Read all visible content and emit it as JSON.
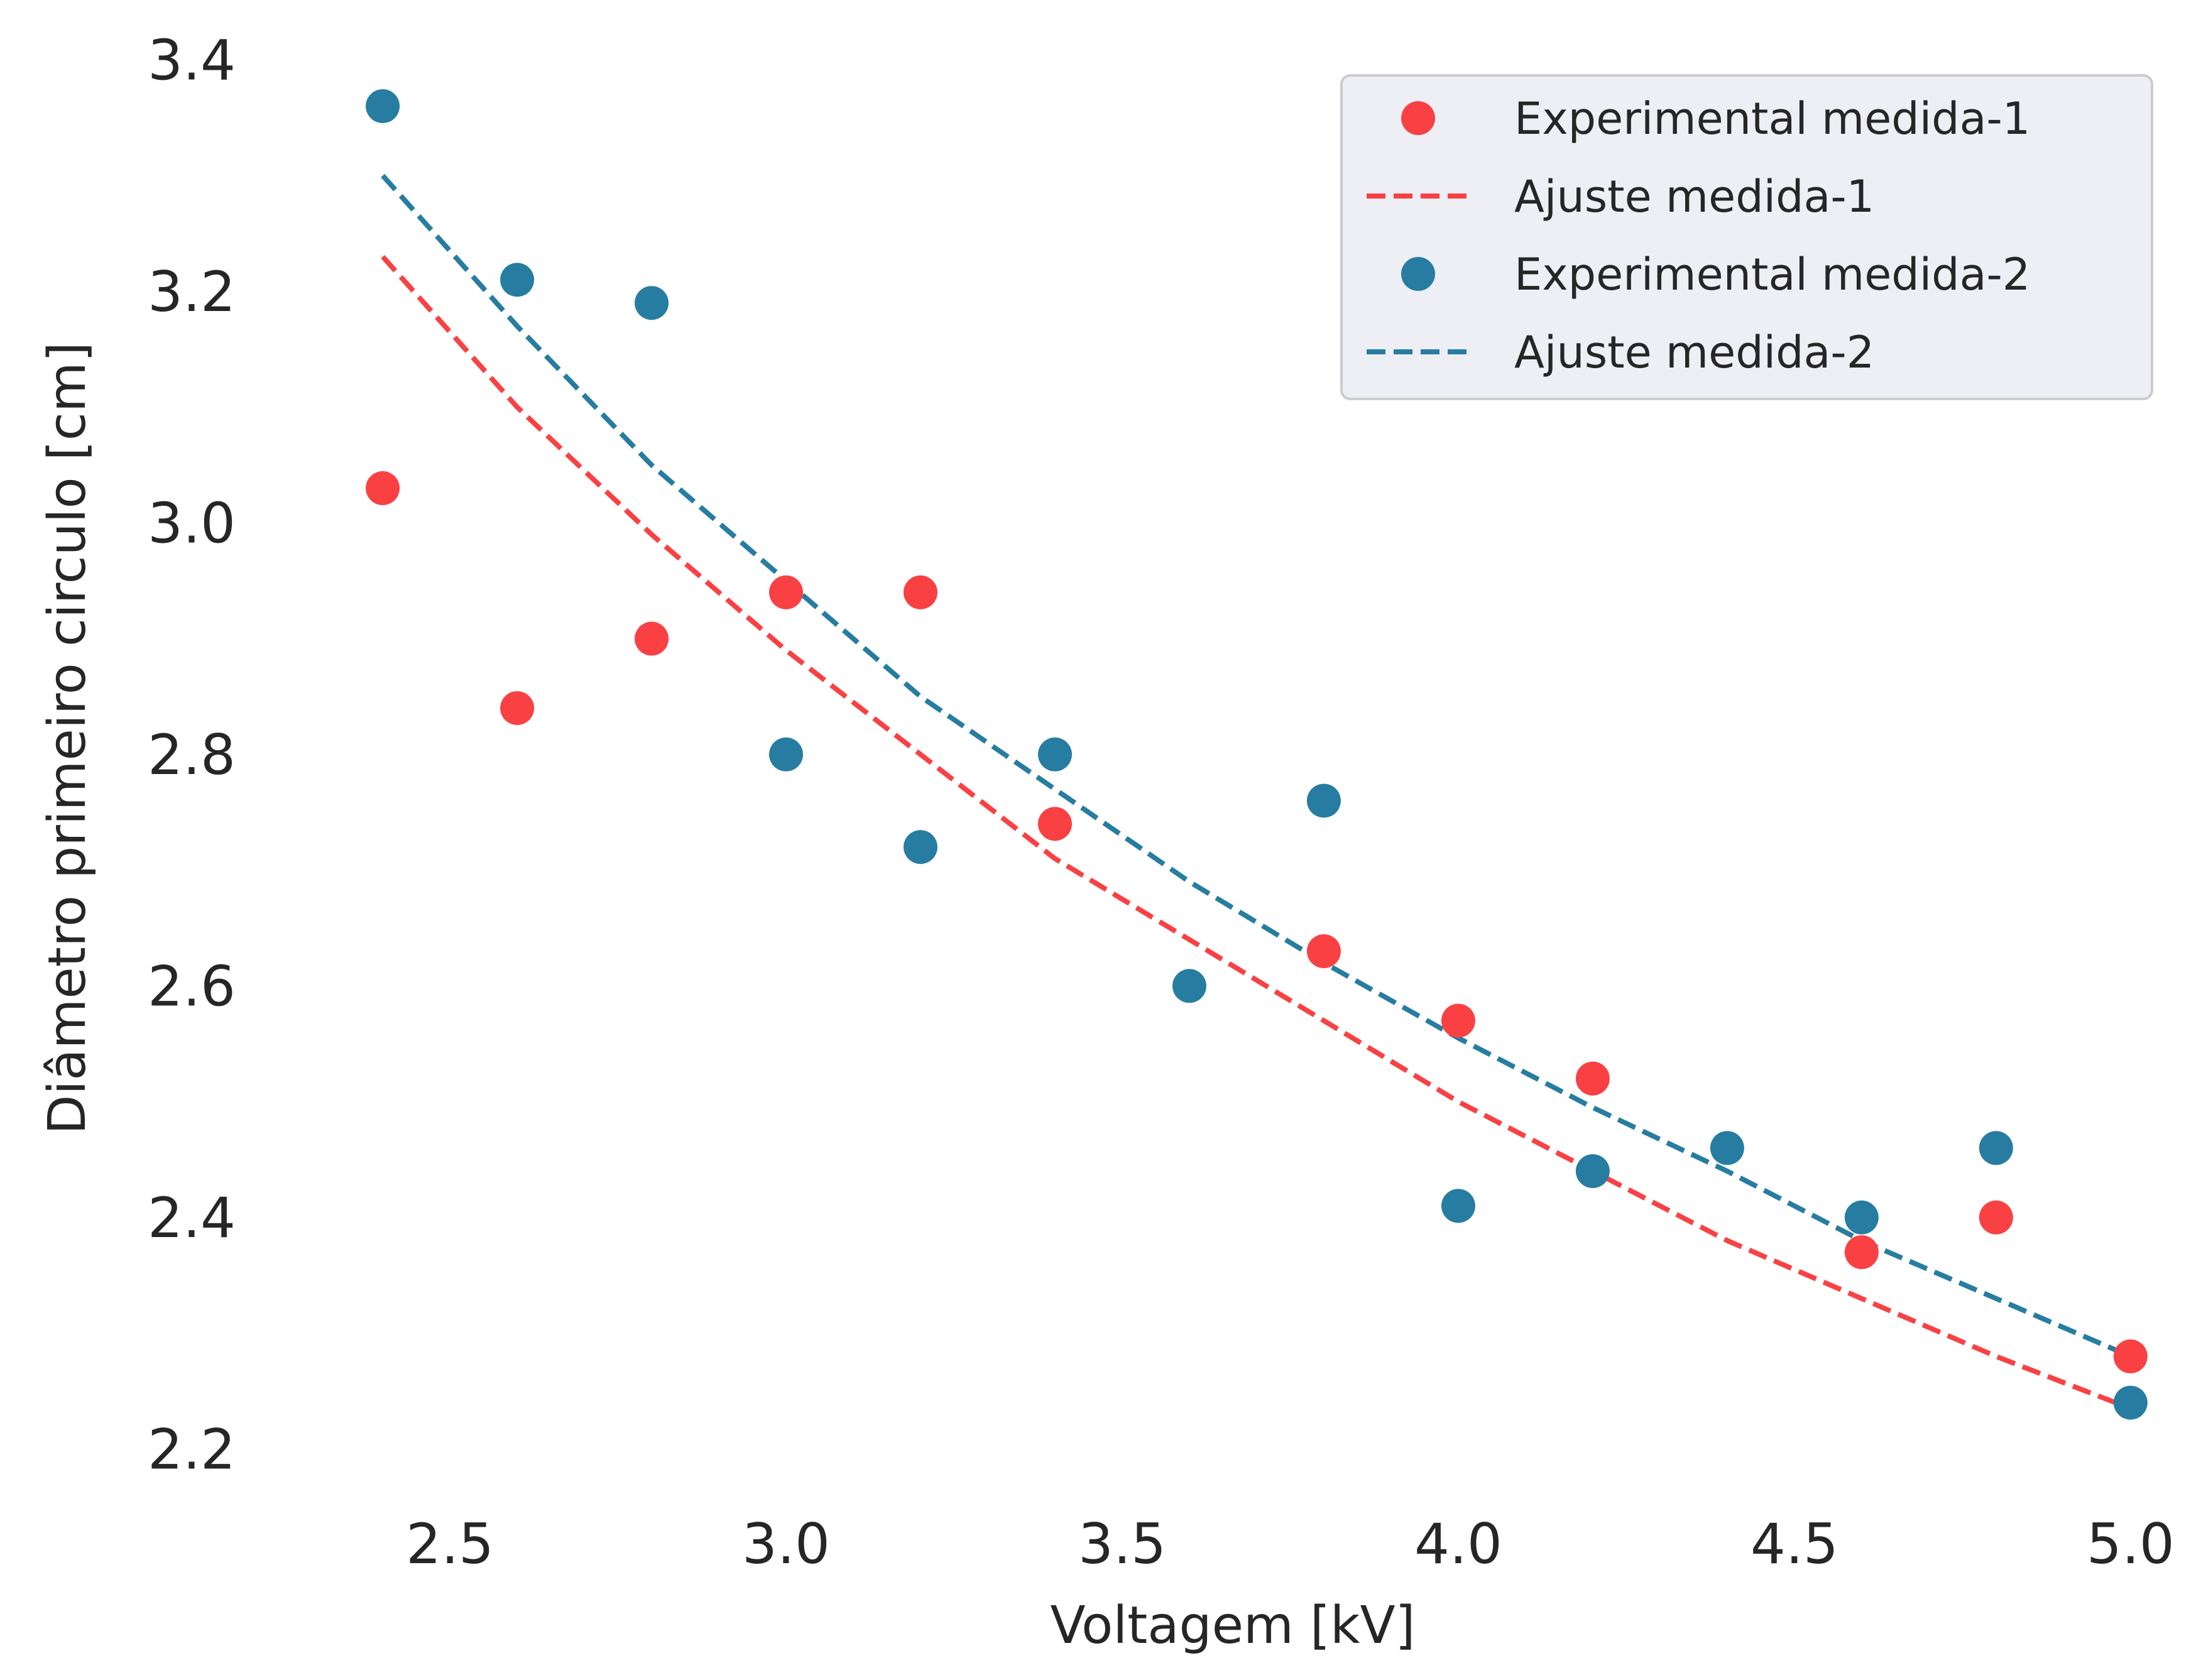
{
  "chart_data": {
    "type": "scatter",
    "xlabel": "Voltagem [kV]",
    "ylabel": "Diâmetro primeiro circulo [cm]",
    "xlim": [
      2.27,
      5.06
    ],
    "ylim": [
      2.16,
      3.43
    ],
    "x_ticks": [
      "2.5",
      "3.0",
      "3.5",
      "4.0",
      "4.5",
      "5.0"
    ],
    "y_ticks": [
      "2.2",
      "2.4",
      "2.6",
      "2.8",
      "3.0",
      "3.2",
      "3.4"
    ],
    "grid": false,
    "legend_position": "top-right",
    "series": [
      {
        "name": "Experimental medida-1",
        "kind": "scatter",
        "color": "#f94144",
        "x": [
          2.4,
          2.6,
          2.8,
          3.0,
          3.2,
          3.4,
          3.8,
          4.0,
          4.2,
          4.6,
          4.8,
          5.0
        ],
        "y": [
          3.03,
          2.84,
          2.9,
          2.94,
          2.94,
          2.74,
          2.63,
          2.57,
          2.52,
          2.37,
          2.4,
          2.28
        ]
      },
      {
        "name": "Ajuste medida-1",
        "kind": "line",
        "color": "#f94144",
        "dash": "dashed",
        "x": [
          2.4,
          2.6,
          2.8,
          3.0,
          3.2,
          3.4,
          3.6,
          3.8,
          4.0,
          4.2,
          4.4,
          4.6,
          4.8,
          5.0
        ],
        "y": [
          3.23,
          3.1,
          2.99,
          2.89,
          2.8,
          2.71,
          2.64,
          2.57,
          2.5,
          2.44,
          2.38,
          2.33,
          2.28,
          2.235
        ]
      },
      {
        "name": "Experimental medida-2",
        "kind": "scatter",
        "color": "#277da1",
        "x": [
          2.4,
          2.6,
          2.8,
          3.0,
          3.2,
          3.4,
          3.6,
          3.8,
          4.0,
          4.2,
          4.4,
          4.6,
          4.8,
          5.0
        ],
        "y": [
          3.36,
          3.21,
          3.19,
          2.8,
          2.72,
          2.8,
          2.6,
          2.76,
          2.41,
          2.44,
          2.46,
          2.4,
          2.46,
          2.24
        ]
      },
      {
        "name": "Ajuste medida-2",
        "kind": "line",
        "color": "#277da1",
        "dash": "dashed",
        "x": [
          2.4,
          2.6,
          2.8,
          3.0,
          3.2,
          3.4,
          3.6,
          3.8,
          4.0,
          4.2,
          4.4,
          4.6,
          4.8,
          5.0
        ],
        "y": [
          3.3,
          3.17,
          3.05,
          2.95,
          2.85,
          2.77,
          2.69,
          2.62,
          2.555,
          2.495,
          2.44,
          2.38,
          2.33,
          2.28
        ]
      }
    ]
  }
}
